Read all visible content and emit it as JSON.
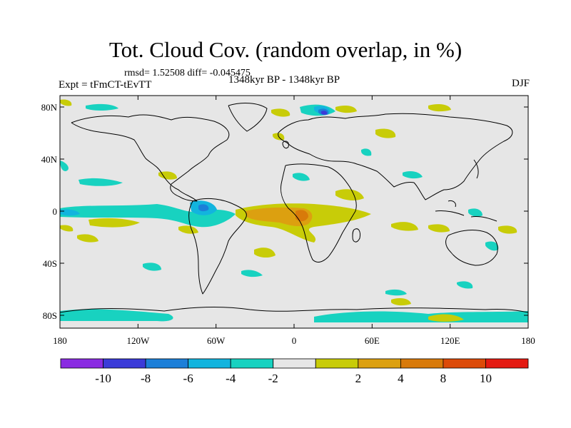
{
  "title": "Tot. Cloud Cov. (random overlap, in %)",
  "stats": "rmsd= 1.52508 diff= -0.045475",
  "expt": "Expt = tFmCT-tEvTT",
  "period": "1348kyr BP - 1348kyr BP",
  "season": "DJF",
  "map": {
    "lon_ticks": [
      "180",
      "120W",
      "60W",
      "0",
      "60E",
      "120E",
      "180"
    ],
    "lat_ticks": [
      "80N",
      "40N",
      "0",
      "40S",
      "80S"
    ],
    "background_color": "#e6e6e6"
  },
  "colorbar": {
    "colors": [
      "#8a2be2",
      "#3b3bd8",
      "#1c7fd8",
      "#12b4de",
      "#18d2c0",
      "#e6e6e6",
      "#c8cc08",
      "#dca010",
      "#d87a0a",
      "#dc4a08",
      "#e41a12"
    ],
    "labels": [
      "-10",
      "-8",
      "-6",
      "-4",
      "-2",
      "2",
      "4",
      "8",
      "10"
    ]
  }
}
